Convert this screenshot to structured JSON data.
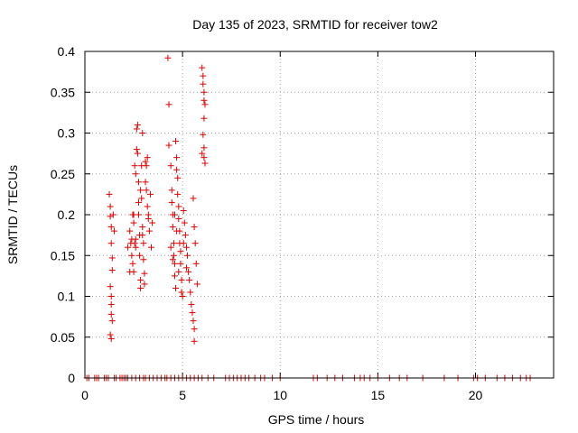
{
  "chart_data": {
    "type": "scatter",
    "title": "Day 135 of 2023, SRMTID for receiver tow2",
    "xlabel": "GPS time / hours",
    "ylabel": "SRMTID / TECUs",
    "xlim": [
      0,
      24
    ],
    "ylim": [
      0,
      0.4
    ],
    "xticks": [
      0,
      5,
      10,
      15,
      20
    ],
    "xtick_labels": [
      "0",
      "5",
      "10",
      "15",
      "20"
    ],
    "yticks": [
      0,
      0.05,
      0.1,
      0.15,
      0.2,
      0.25,
      0.3,
      0.35,
      0.4
    ],
    "ytick_labels": [
      "0",
      "0.05",
      "0.1",
      "0.15",
      "0.2",
      "0.25",
      "0.3",
      "0.35",
      "0.4"
    ],
    "grid": true,
    "marker": "+",
    "marker_color": "#e00000",
    "series": [
      {
        "name": "tow2",
        "points": [
          [
            1.25,
            0.225
          ],
          [
            1.3,
            0.21
          ],
          [
            1.3,
            0.198
          ],
          [
            1.35,
            0.185
          ],
          [
            1.35,
            0.165
          ],
          [
            1.4,
            0.147
          ],
          [
            1.4,
            0.132
          ],
          [
            1.3,
            0.112
          ],
          [
            1.35,
            0.1
          ],
          [
            1.35,
            0.09
          ],
          [
            1.35,
            0.078
          ],
          [
            1.4,
            0.07
          ],
          [
            1.3,
            0.053
          ],
          [
            1.35,
            0.048
          ],
          [
            1.45,
            0.2
          ],
          [
            1.5,
            0.18
          ],
          [
            2.2,
            0.16
          ],
          [
            2.3,
            0.13
          ],
          [
            2.3,
            0.18
          ],
          [
            2.4,
            0.17
          ],
          [
            2.4,
            0.15
          ],
          [
            2.45,
            0.14
          ],
          [
            2.5,
            0.19
          ],
          [
            2.5,
            0.2
          ],
          [
            2.55,
            0.165
          ],
          [
            2.6,
            0.17
          ],
          [
            2.6,
            0.16
          ],
          [
            2.6,
            0.25
          ],
          [
            2.65,
            0.28
          ],
          [
            2.65,
            0.305
          ],
          [
            2.7,
            0.31
          ],
          [
            2.7,
            0.275
          ],
          [
            2.75,
            0.24
          ],
          [
            2.75,
            0.215
          ],
          [
            2.75,
            0.2
          ],
          [
            2.8,
            0.175
          ],
          [
            2.8,
            0.15
          ],
          [
            2.85,
            0.12
          ],
          [
            2.85,
            0.11
          ],
          [
            2.85,
            0.23
          ],
          [
            2.9,
            0.26
          ],
          [
            2.9,
            0.22
          ],
          [
            2.95,
            0.185
          ],
          [
            2.95,
            0.175
          ],
          [
            3.0,
            0.165
          ],
          [
            3.0,
            0.145
          ],
          [
            3.05,
            0.128
          ],
          [
            3.05,
            0.115
          ],
          [
            3.1,
            0.265
          ],
          [
            3.1,
            0.24
          ],
          [
            3.15,
            0.23
          ],
          [
            3.15,
            0.26
          ],
          [
            3.2,
            0.27
          ],
          [
            3.2,
            0.21
          ],
          [
            3.25,
            0.2
          ],
          [
            3.25,
            0.195
          ],
          [
            3.3,
            0.18
          ],
          [
            3.35,
            0.225
          ],
          [
            2.55,
            0.26
          ],
          [
            2.95,
            0.3
          ],
          [
            2.45,
            0.2
          ],
          [
            2.35,
            0.165
          ],
          [
            2.5,
            0.13
          ],
          [
            3.4,
            0.16
          ],
          [
            3.45,
            0.19
          ],
          [
            4.25,
            0.392
          ],
          [
            4.3,
            0.335
          ],
          [
            4.3,
            0.285
          ],
          [
            4.4,
            0.26
          ],
          [
            4.45,
            0.23
          ],
          [
            4.45,
            0.215
          ],
          [
            4.5,
            0.2
          ],
          [
            4.5,
            0.185
          ],
          [
            4.55,
            0.165
          ],
          [
            4.55,
            0.15
          ],
          [
            4.6,
            0.14
          ],
          [
            4.6,
            0.125
          ],
          [
            4.65,
            0.11
          ],
          [
            4.65,
            0.29
          ],
          [
            4.7,
            0.27
          ],
          [
            4.7,
            0.255
          ],
          [
            4.75,
            0.245
          ],
          [
            4.75,
            0.225
          ],
          [
            4.8,
            0.21
          ],
          [
            4.8,
            0.195
          ],
          [
            4.85,
            0.18
          ],
          [
            4.85,
            0.165
          ],
          [
            4.9,
            0.155
          ],
          [
            4.9,
            0.14
          ],
          [
            4.95,
            0.105
          ],
          [
            5.0,
            0.1
          ],
          [
            5.05,
            0.205
          ],
          [
            5.1,
            0.19
          ],
          [
            5.15,
            0.175
          ],
          [
            5.2,
            0.16
          ],
          [
            5.25,
            0.15
          ],
          [
            5.3,
            0.13
          ],
          [
            5.35,
            0.12
          ],
          [
            5.4,
            0.105
          ],
          [
            5.45,
            0.09
          ],
          [
            5.5,
            0.08
          ],
          [
            5.55,
            0.07
          ],
          [
            5.6,
            0.06
          ],
          [
            5.6,
            0.045
          ],
          [
            5.55,
            0.22
          ],
          [
            5.6,
            0.185
          ],
          [
            5.65,
            0.165
          ],
          [
            5.7,
            0.14
          ],
          [
            5.75,
            0.115
          ],
          [
            4.4,
            0.16
          ],
          [
            4.5,
            0.145
          ],
          [
            4.6,
            0.2
          ],
          [
            4.7,
            0.18
          ],
          [
            4.8,
            0.13
          ],
          [
            4.95,
            0.12
          ],
          [
            5.05,
            0.165
          ],
          [
            5.2,
            0.135
          ],
          [
            6.0,
            0.38
          ],
          [
            6.05,
            0.37
          ],
          [
            6.05,
            0.36
          ],
          [
            6.1,
            0.35
          ],
          [
            6.1,
            0.34
          ],
          [
            6.15,
            0.335
          ],
          [
            6.1,
            0.318
          ],
          [
            6.05,
            0.298
          ],
          [
            6.1,
            0.282
          ],
          [
            6.0,
            0.275
          ],
          [
            6.1,
            0.27
          ],
          [
            6.15,
            0.263
          ],
          [
            0.1,
            0
          ],
          [
            0.2,
            0
          ],
          [
            0.5,
            0
          ],
          [
            0.6,
            0
          ],
          [
            0.7,
            0
          ],
          [
            1.0,
            0
          ],
          [
            1.1,
            0
          ],
          [
            1.2,
            0
          ],
          [
            1.5,
            0
          ],
          [
            1.6,
            0
          ],
          [
            1.8,
            0
          ],
          [
            1.9,
            0
          ],
          [
            2.0,
            0
          ],
          [
            2.1,
            0
          ],
          [
            2.2,
            0
          ],
          [
            2.4,
            0
          ],
          [
            2.6,
            0
          ],
          [
            2.8,
            0
          ],
          [
            3.0,
            0
          ],
          [
            3.1,
            0
          ],
          [
            3.3,
            0
          ],
          [
            3.5,
            0
          ],
          [
            3.7,
            0
          ],
          [
            3.9,
            0
          ],
          [
            4.1,
            0
          ],
          [
            4.2,
            0
          ],
          [
            4.4,
            0
          ],
          [
            4.6,
            0
          ],
          [
            4.8,
            0
          ],
          [
            5.0,
            0
          ],
          [
            5.2,
            0
          ],
          [
            5.4,
            0
          ],
          [
            5.6,
            0
          ],
          [
            5.8,
            0
          ],
          [
            6.0,
            0
          ],
          [
            6.3,
            0
          ],
          [
            6.6,
            0
          ],
          [
            7.2,
            0
          ],
          [
            7.4,
            0
          ],
          [
            7.6,
            0
          ],
          [
            7.8,
            0
          ],
          [
            8.0,
            0
          ],
          [
            8.2,
            0
          ],
          [
            8.4,
            0
          ],
          [
            8.7,
            0
          ],
          [
            9.0,
            0
          ],
          [
            9.2,
            0
          ],
          [
            9.6,
            0
          ],
          [
            10.0,
            0
          ],
          [
            11.7,
            0
          ],
          [
            11.9,
            0
          ],
          [
            12.4,
            0
          ],
          [
            12.8,
            0
          ],
          [
            13.2,
            0
          ],
          [
            13.8,
            0
          ],
          [
            14.1,
            0
          ],
          [
            14.3,
            0
          ],
          [
            14.6,
            0
          ],
          [
            15.0,
            0
          ],
          [
            15.6,
            0
          ],
          [
            16.1,
            0
          ],
          [
            16.5,
            0
          ],
          [
            17.3,
            0
          ],
          [
            18.4,
            0
          ],
          [
            19.1,
            0
          ],
          [
            19.9,
            0
          ],
          [
            20.1,
            0
          ],
          [
            20.5,
            0
          ],
          [
            21.1,
            0
          ],
          [
            21.5,
            0
          ],
          [
            21.9,
            0
          ],
          [
            22.3,
            0
          ],
          [
            22.6,
            0
          ],
          [
            22.8,
            0
          ]
        ]
      }
    ]
  }
}
